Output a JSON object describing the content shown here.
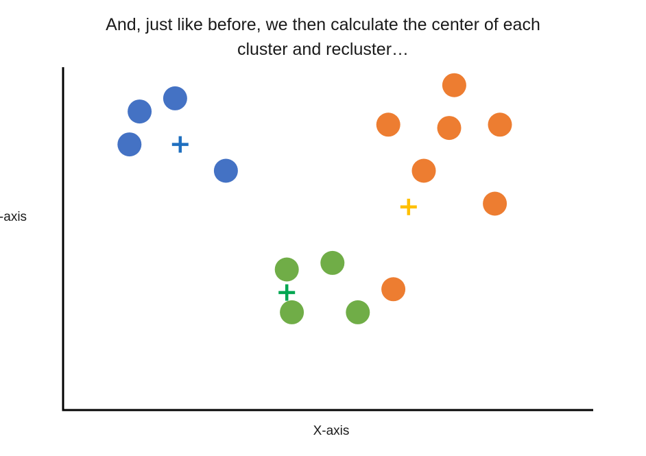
{
  "slide": {
    "title_line1": "And, just like before, we then calculate the center of each",
    "title_line2": "cluster and recluster…"
  },
  "chart_data": {
    "type": "scatter",
    "title": "And, just like before, we then calculate the center of each cluster and recluster…",
    "xlabel": "X-axis",
    "ylabel": "Y-axis",
    "xlim": [
      0,
      100
    ],
    "ylim": [
      0,
      100
    ],
    "grid": false,
    "legend": "none",
    "series": [
      {
        "color": "#4472C4",
        "marker": "circle",
        "points": [
          [
            14,
            88
          ],
          [
            21,
            92
          ],
          [
            12,
            78
          ],
          [
            31,
            70
          ]
        ]
      },
      {
        "color": "#ED7D31",
        "marker": "circle",
        "points": [
          [
            76,
            96
          ],
          [
            63,
            84
          ],
          [
            75,
            83
          ],
          [
            85,
            84
          ],
          [
            70,
            70
          ],
          [
            84,
            60
          ],
          [
            64,
            34
          ]
        ]
      },
      {
        "color": "#70AD47",
        "marker": "circle",
        "points": [
          [
            43,
            40
          ],
          [
            52,
            42
          ],
          [
            44,
            27
          ],
          [
            57,
            27
          ]
        ]
      }
    ],
    "centroids": [
      {
        "color": "#1F6FBF",
        "marker": "plus",
        "x": 22,
        "y": 78
      },
      {
        "color": "#FFC000",
        "marker": "plus",
        "x": 67,
        "y": 59
      },
      {
        "color": "#00A651",
        "marker": "plus",
        "x": 43,
        "y": 33
      }
    ]
  }
}
